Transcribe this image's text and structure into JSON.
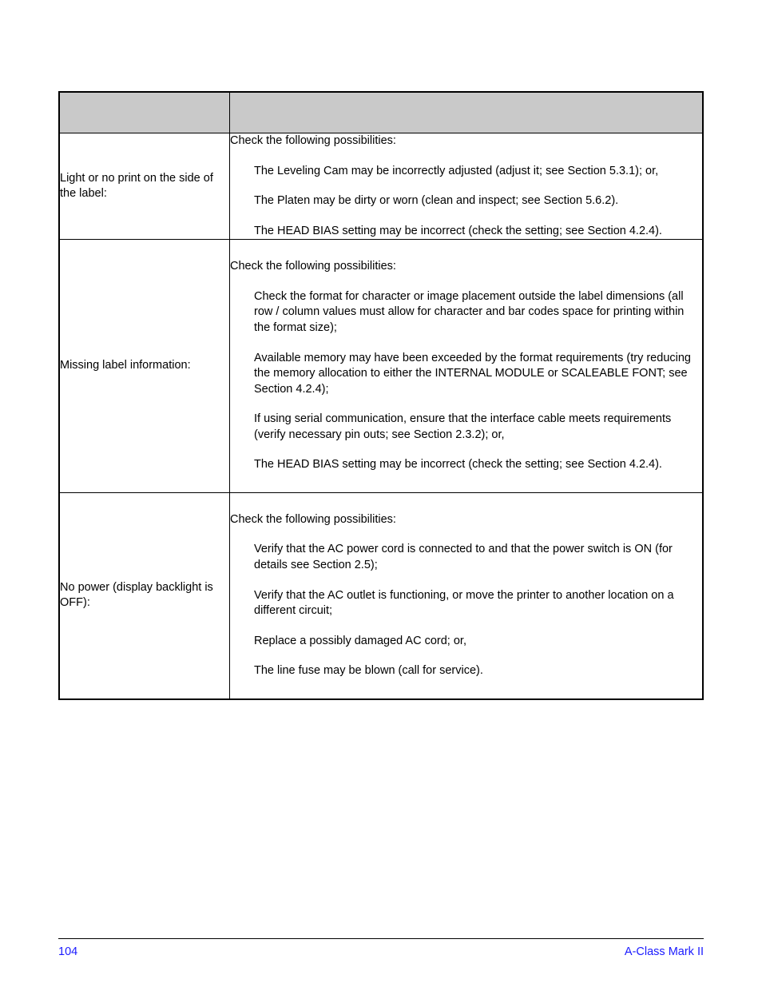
{
  "table": {
    "header_bg": "#c9c9c9",
    "border_color": "#000000",
    "rows": [
      {
        "symptom": "Light or no print on the side of the label:",
        "intro": "Check the following possibilities:",
        "items": [
          "The Leveling Cam may be incorrectly adjusted (adjust it; see Section 5.3.1); or,",
          "The Platen may be dirty or worn (clean and inspect; see Section 5.6.2).",
          "The HEAD BIAS setting may be incorrect (check the setting; see Section 4.2.4)."
        ]
      },
      {
        "symptom": "Missing label information:",
        "intro": "Check the following possibilities:",
        "items": [
          "Check the format for character or image placement outside the label dimensions (all row / column values must allow for character and bar codes space for printing within the format size);",
          "Available memory may have been exceeded by the format requirements (try reducing the memory allocation to either the INTERNAL MODULE or SCALEABLE FONT; see Section 4.2.4);",
          "If using serial communication, ensure that the interface cable meets requirements (verify necessary pin outs; see Section 2.3.2); or,",
          "The HEAD BIAS setting may be incorrect (check the setting; see Section 4.2.4)."
        ]
      },
      {
        "symptom": "No power (display backlight is OFF):",
        "intro": "Check the following possibilities:",
        "items": [
          "Verify that the AC power cord is connected to and that the power switch is ON (for details see Section 2.5);",
          "Verify that the AC outlet is functioning, or move the printer to another location on a different circuit;",
          "Replace a possibly damaged AC cord; or,",
          "The line fuse may be blown (call for service)."
        ]
      }
    ]
  },
  "footer": {
    "page_number": "104",
    "product": "A-Class Mark II",
    "text_color": "#1a1aff"
  }
}
